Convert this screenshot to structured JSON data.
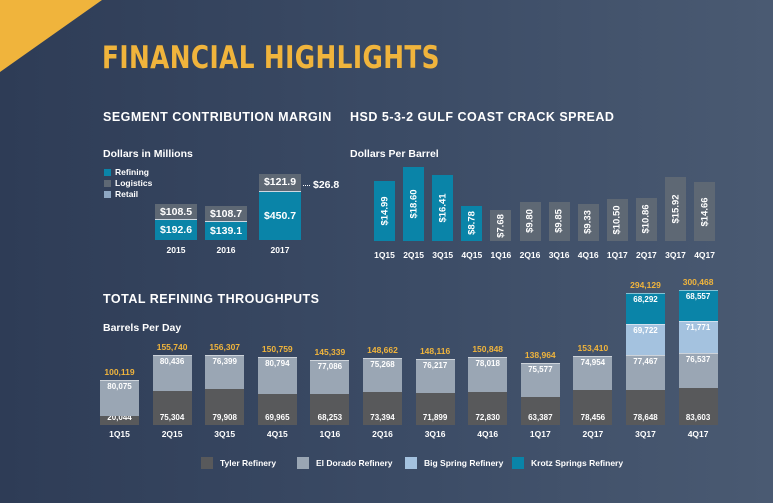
{
  "title": "FINANCIAL HIGHLIGHTS",
  "colors": {
    "refining": "#0a84a8",
    "logistics": "#5e6874",
    "retail": "#8ea7c3",
    "tyler": "#58595b",
    "el_dorado": "#9aa6b4",
    "big_spring": "#a4c2df",
    "krotz": "#0a84a8",
    "accent": "#f0b43c"
  },
  "chart_data": [
    {
      "type": "bar",
      "title": "SEGMENT CONTRIBUTION MARGIN",
      "ylabel": "Dollars in Millions",
      "categories": [
        "2015",
        "2016",
        "2017"
      ],
      "series": [
        {
          "name": "Refining",
          "values": [
            192.6,
            139.1,
            450.7
          ]
        },
        {
          "name": "Logistics",
          "values": [
            108.5,
            108.7,
            121.9
          ]
        },
        {
          "name": "Retail",
          "values": [
            null,
            null,
            26.8
          ]
        }
      ],
      "labels": {
        "refining": [
          "$192.6",
          "$139.1",
          "$450.7"
        ],
        "logistics": [
          "$108.5",
          "$108.7",
          "$121.9"
        ],
        "retail_2017": "$26.8"
      }
    },
    {
      "type": "bar",
      "title": "HSD 5-3-2 GULF COAST CRACK SPREAD",
      "ylabel": "Dollars Per Barrel",
      "categories": [
        "1Q15",
        "2Q15",
        "3Q15",
        "4Q15",
        "1Q16",
        "2Q16",
        "3Q16",
        "4Q16",
        "1Q17",
        "2Q17",
        "3Q17",
        "4Q17"
      ],
      "values": [
        14.99,
        18.6,
        16.41,
        8.78,
        7.68,
        9.8,
        9.85,
        9.33,
        10.5,
        10.86,
        15.92,
        14.66
      ],
      "value_labels": [
        "$14.99",
        "$18.60",
        "$16.41",
        "$8.78",
        "$7.68",
        "$9.80",
        "$9.85",
        "$9.33",
        "$10.50",
        "$10.86",
        "$15.92",
        "$14.66"
      ]
    },
    {
      "type": "bar",
      "title": "TOTAL REFINING THROUGHPUTS",
      "ylabel": "Barrels Per Day",
      "categories": [
        "1Q15",
        "2Q15",
        "3Q15",
        "4Q15",
        "1Q16",
        "2Q16",
        "3Q16",
        "4Q16",
        "1Q17",
        "2Q17",
        "3Q17",
        "4Q17"
      ],
      "series": [
        {
          "name": "Tyler Refinery",
          "values": [
            20044,
            75304,
            79908,
            69965,
            68253,
            73394,
            71899,
            72830,
            63387,
            78456,
            78648,
            83603
          ]
        },
        {
          "name": "El Dorado Refinery",
          "values": [
            80075,
            80436,
            76399,
            80794,
            77086,
            75268,
            76217,
            78018,
            75577,
            74954,
            77467,
            76537
          ]
        },
        {
          "name": "Big Spring Refinery",
          "values": [
            null,
            null,
            null,
            null,
            null,
            null,
            null,
            null,
            null,
            null,
            69722,
            71771
          ]
        },
        {
          "name": "Krotz Springs Refinery",
          "values": [
            null,
            null,
            null,
            null,
            null,
            null,
            null,
            null,
            null,
            null,
            68292,
            68557
          ]
        }
      ],
      "segment_labels": [
        [
          "20,044",
          "80,075"
        ],
        [
          "75,304",
          "80,436"
        ],
        [
          "79,908",
          "76,399"
        ],
        [
          "69,965",
          "80,794"
        ],
        [
          "68,253",
          "77,086"
        ],
        [
          "73,394",
          "75,268"
        ],
        [
          "71,899",
          "76,217"
        ],
        [
          "72,830",
          "78,018"
        ],
        [
          "63,387",
          "75,577"
        ],
        [
          "78,456",
          "74,954"
        ],
        [
          "78,648",
          "77,467",
          "69,722",
          "68,292"
        ],
        [
          "83,603",
          "76,537",
          "71,771",
          "68,557"
        ]
      ],
      "totals": [
        100119,
        155740,
        156307,
        150759,
        145339,
        148662,
        148116,
        150848,
        138964,
        153410,
        294129,
        300468
      ],
      "total_labels": [
        "100,119",
        "155,740",
        "156,307",
        "150,759",
        "145,339",
        "148,662",
        "148,116",
        "150,848",
        "138,964",
        "153,410",
        "294,129",
        "300,468"
      ]
    }
  ]
}
